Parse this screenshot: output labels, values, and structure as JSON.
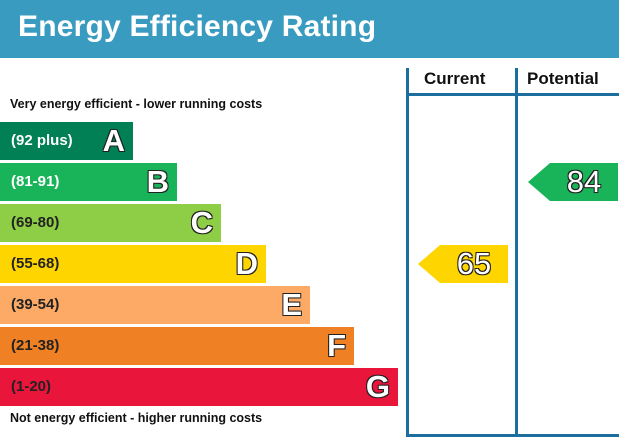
{
  "title": "Energy Efficiency Rating",
  "columns": {
    "current": "Current",
    "potential": "Potential"
  },
  "top_legend": "Very energy efficient - lower running costs",
  "bottom_legend": "Not energy efficient - higher running costs",
  "colors": {
    "header": "#3a9bc0",
    "frame": "#1b6e9e"
  },
  "chart_data": {
    "type": "bar",
    "title": "Energy Efficiency Rating",
    "bands": [
      {
        "letter": "A",
        "range": "(92 plus)",
        "color": "#008054",
        "text_color": "#ffffff"
      },
      {
        "letter": "B",
        "range": "(81-91)",
        "color": "#19b459",
        "text_color": "#ffffff"
      },
      {
        "letter": "C",
        "range": "(69-80)",
        "color": "#8dce46",
        "text_color": "#222222"
      },
      {
        "letter": "D",
        "range": "(55-68)",
        "color": "#ffd500",
        "text_color": "#222222"
      },
      {
        "letter": "E",
        "range": "(39-54)",
        "color": "#fcaa65",
        "text_color": "#222222"
      },
      {
        "letter": "F",
        "range": "(21-38)",
        "color": "#ef8023",
        "text_color": "#222222"
      },
      {
        "letter": "G",
        "range": "(1-20)",
        "color": "#e9153b",
        "text_color": "#222222"
      }
    ],
    "series": [
      {
        "name": "Current",
        "value": 65,
        "band": "D"
      },
      {
        "name": "Potential",
        "value": 84,
        "band": "B"
      }
    ]
  }
}
